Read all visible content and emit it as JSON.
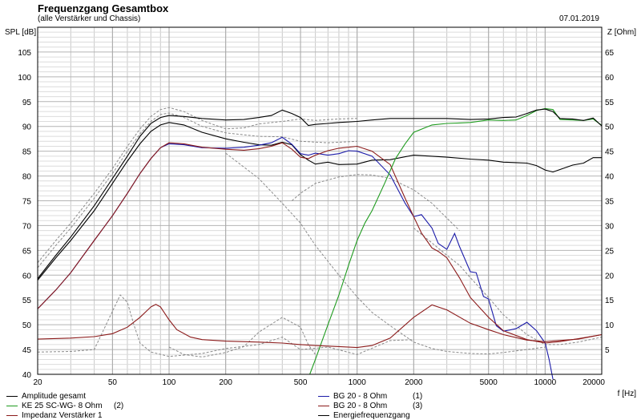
{
  "header": {
    "title": "Frequenzgang Gesamtbox",
    "subtitle": "(alle Verstärker und Chassis)",
    "date": "07.01.2019"
  },
  "chart_data": {
    "type": "line",
    "title": "Frequenzgang Gesamtbox",
    "subtitle": "(alle Verstärker und Chassis)",
    "xlabel": "f [Hz]",
    "ylabel": "SPL [dB]",
    "y2label": "Z [Ohm]",
    "xscale": "log",
    "xlim": [
      20,
      20000
    ],
    "ylim": [
      40,
      110
    ],
    "y2lim": [
      0,
      70
    ],
    "x_ticks": [
      20,
      50,
      100,
      200,
      500,
      1000,
      2000,
      5000,
      10000,
      20000
    ],
    "x_tick_labels": [
      "20",
      "50",
      "100",
      "200",
      "500",
      "1000",
      "2000",
      "5000",
      "10000",
      "20000"
    ],
    "y_ticks": [
      40,
      45,
      50,
      55,
      60,
      65,
      70,
      75,
      80,
      85,
      90,
      95,
      100,
      105
    ],
    "y_tick_labels": [
      "40",
      "45",
      "50",
      "55",
      "60",
      "65",
      "70",
      "75",
      "80",
      "85",
      "90",
      "95",
      "100",
      "105"
    ],
    "y2_ticks": [
      5,
      10,
      15,
      20,
      25,
      30,
      35,
      40,
      45,
      50,
      55,
      60,
      65
    ],
    "y2_tick_labels": [
      "5",
      "10",
      "15",
      "20",
      "25",
      "30",
      "35",
      "40",
      "45",
      "50",
      "55",
      "60",
      "65"
    ],
    "grid": true,
    "legend_position": "bottom",
    "series": [
      {
        "name": "Amplitude gesamt",
        "color": "#000000",
        "x": [
          20,
          25,
          30,
          40,
          50,
          60,
          70,
          80,
          90,
          100,
          120,
          150,
          200,
          250,
          300,
          350,
          400,
          450,
          500,
          550,
          600,
          700,
          800,
          1000,
          1200,
          1500,
          2000,
          3000,
          4000,
          5000,
          6000,
          7000,
          8000,
          9000,
          10000,
          11000,
          12000,
          14000,
          16000,
          18000,
          20000
        ],
        "y": [
          59,
          63.5,
          67,
          73,
          78.5,
          83,
          86.5,
          89,
          90.3,
          90.8,
          90.3,
          88.8,
          87.5,
          86.8,
          86.3,
          86.2,
          86.8,
          86.3,
          84.3,
          83.2,
          82.4,
          82.8,
          82.3,
          82.4,
          83.2,
          83.3,
          84.2,
          83.8,
          83.4,
          83.2,
          82.8,
          82.7,
          82.6,
          82.1,
          81.2,
          80.8,
          81.3,
          82.2,
          82.6,
          83.7,
          83.7
        ]
      },
      {
        "name": "BG 20 - 8 Ohm",
        "label_suffix": "(1)",
        "color": "#1a1aa8",
        "x": [
          20,
          25,
          30,
          40,
          50,
          60,
          70,
          80,
          90,
          100,
          120,
          150,
          200,
          250,
          300,
          350,
          400,
          450,
          500,
          550,
          600,
          700,
          800,
          900,
          1000,
          1200,
          1500,
          1800,
          2000,
          2200,
          2500,
          2700,
          3000,
          3300,
          3500,
          4000,
          4300,
          4700,
          5000,
          5500,
          6000,
          7000,
          8000,
          9000,
          10000,
          10500,
          11000
        ],
        "y": [
          53.2,
          57,
          60.5,
          67,
          72,
          76.5,
          80.5,
          83.5,
          85.7,
          86.5,
          86.3,
          85.7,
          85.6,
          85.8,
          86.2,
          86.7,
          87.8,
          86.4,
          84.5,
          84.2,
          84.6,
          84.2,
          84.5,
          85.1,
          85.0,
          84.0,
          80.2,
          74.5,
          71.8,
          72.2,
          69.5,
          66.4,
          65.2,
          68.4,
          65.8,
          60.7,
          60.5,
          55.7,
          55.2,
          49.8,
          48.7,
          49.2,
          50.5,
          48.8,
          46.3,
          43,
          39
        ]
      },
      {
        "name": "BG 20 - 8 Ohm",
        "label_suffix": "(3)",
        "color": "#8b1a1a",
        "x": [
          20,
          25,
          30,
          40,
          50,
          60,
          70,
          80,
          90,
          100,
          120,
          150,
          200,
          250,
          300,
          350,
          400,
          450,
          500,
          550,
          600,
          700,
          800,
          1000,
          1200,
          1500,
          1800,
          2000,
          2200,
          2500,
          2700,
          3000,
          3500,
          4000,
          5000,
          6000,
          8000,
          10000,
          12000,
          15000,
          20000
        ],
        "y": [
          53.2,
          57,
          60.5,
          67,
          72,
          76.5,
          80.5,
          83.5,
          85.7,
          86.7,
          86.5,
          85.8,
          85.4,
          85.2,
          85.5,
          86.0,
          86.7,
          85.4,
          83.8,
          83.5,
          84.2,
          85.1,
          85.6,
          86.0,
          85.0,
          82.3,
          75.5,
          71.8,
          68.5,
          65.5,
          64.8,
          63.5,
          59.5,
          55.5,
          51.5,
          48.8,
          47.0,
          46.3,
          46.6,
          47.2,
          48.0
        ]
      },
      {
        "name": "KE 25 SC-WG- 8 Ohm",
        "label_suffix": "(2)",
        "color": "#1f9b1f",
        "x": [
          560,
          600,
          700,
          800,
          900,
          1000,
          1100,
          1200,
          1400,
          1600,
          1800,
          2000,
          2500,
          3000,
          3500,
          4000,
          5000,
          6000,
          7000,
          8000,
          9000,
          10000,
          11000,
          12000,
          14000,
          16000,
          18000,
          20000
        ],
        "y": [
          40,
          43,
          50,
          56,
          62,
          67,
          70.5,
          73,
          78.5,
          83.5,
          86.5,
          88.8,
          90.3,
          90.6,
          90.7,
          90.8,
          91.3,
          91.2,
          91.3,
          92.2,
          93.2,
          93.6,
          93.4,
          91.4,
          91.3,
          91.2,
          91.5,
          90.2
        ]
      },
      {
        "name": "Energiefrequenzgang",
        "color": "#000000",
        "x": [
          20,
          25,
          30,
          40,
          50,
          60,
          70,
          80,
          90,
          100,
          120,
          150,
          200,
          250,
          300,
          350,
          400,
          450,
          500,
          550,
          600,
          700,
          800,
          1000,
          1200,
          1500,
          2000,
          3000,
          4000,
          5000,
          6000,
          7000,
          8000,
          9000,
          10000,
          11000,
          12000,
          14000,
          16000,
          18000,
          20000
        ],
        "y": [
          59.3,
          64,
          67.7,
          74,
          79.5,
          84,
          88,
          90.6,
          91.8,
          92.2,
          92.0,
          91.6,
          91.3,
          91.4,
          91.8,
          92.2,
          93.3,
          92.6,
          91.8,
          90.2,
          90.4,
          90.6,
          90.8,
          91.0,
          91.3,
          91.6,
          91.6,
          91.6,
          91.4,
          91.5,
          91.8,
          91.9,
          92.6,
          93.3,
          93.5,
          93.0,
          91.6,
          91.5,
          91.2,
          91.7,
          90.1
        ]
      },
      {
        "name": "Impedanz Verstärker 1",
        "color": "#8b1a1a",
        "axis": "right",
        "x": [
          20,
          30,
          40,
          50,
          60,
          70,
          80,
          85,
          90,
          100,
          110,
          130,
          150,
          200,
          300,
          400,
          500,
          600,
          800,
          1000,
          1200,
          1500,
          2000,
          2500,
          3000,
          4000,
          5000,
          6000,
          8000,
          10000,
          15000,
          20000
        ],
        "y": [
          7.1,
          7.3,
          7.6,
          8.2,
          9.5,
          11.5,
          13.6,
          14.1,
          13.6,
          11.0,
          9.0,
          7.5,
          7.0,
          6.7,
          6.5,
          6.3,
          6.0,
          5.8,
          5.6,
          5.4,
          5.8,
          7.3,
          11.5,
          14.0,
          13.0,
          10.3,
          9.0,
          8.0,
          6.9,
          6.6,
          7.1,
          8.0
        ]
      }
    ],
    "reference_curves_dashed": [
      {
        "color": "#8a8a8a",
        "x": [
          20,
          25,
          30,
          40,
          50,
          60,
          70,
          80,
          90,
          100,
          120,
          150,
          200,
          250,
          300,
          400,
          500,
          600,
          800,
          1000
        ],
        "y": [
          62.5,
          67,
          70.5,
          76.5,
          81.5,
          86,
          89.5,
          92,
          93.4,
          93.8,
          93.0,
          91.2,
          89.5,
          89.7,
          90.5,
          91.0,
          91.5,
          91.2,
          91.5,
          91.6
        ]
      },
      {
        "color": "#8a8a8a",
        "x": [
          20,
          25,
          30,
          40,
          50,
          60,
          70,
          80,
          90,
          100,
          120,
          150,
          200,
          300,
          400,
          500,
          700,
          1000
        ],
        "y": [
          61.5,
          66,
          69.5,
          75.5,
          80.5,
          85,
          88.5,
          91,
          92.4,
          92.7,
          91.8,
          90.0,
          88.7,
          88.0,
          87.9,
          87.0,
          86.7,
          87.0
        ]
      },
      {
        "color": "#8a8a8a",
        "x": [
          200,
          300,
          400,
          500,
          600,
          800,
          1000,
          1200,
          1500,
          2000,
          2500,
          3000,
          4000,
          5000,
          6000,
          8000,
          10000
        ],
        "y": [
          84.6,
          79.5,
          74.5,
          70.5,
          66,
          60,
          55.6,
          52.5,
          49.8,
          46.5,
          45.2,
          44.6,
          44.2,
          44.1,
          44.4,
          45.0,
          45.5
        ]
      },
      {
        "color": "#8a8a8a",
        "x": [
          450,
          500,
          600,
          800,
          1000,
          1200,
          1500,
          2000,
          2500,
          3000,
          3500
        ],
        "y": [
          75,
          76.5,
          78.5,
          79.8,
          80.3,
          80.2,
          79.5,
          77.2,
          74.5,
          71.5,
          69
        ]
      },
      {
        "color": "#8a8a8a",
        "x": [
          2000,
          2500,
          3000,
          3500,
          4000,
          5000,
          6000,
          8000,
          10000,
          12000,
          15000,
          20000
        ],
        "y": [
          69.5,
          66.5,
          64.0,
          62.0,
          59.5,
          55.5,
          52.0,
          48.0,
          46.0,
          46.0,
          46.5,
          47.5
        ]
      },
      {
        "color": "#8a8a8a",
        "x": [
          20,
          30,
          40,
          48,
          55,
          60,
          65,
          70,
          80,
          100,
          150,
          200,
          300,
          400,
          500,
          700,
          1000,
          1500,
          2000
        ],
        "y": [
          44.5,
          44.6,
          45.0,
          51.3,
          56.0,
          54.5,
          50.0,
          46.3,
          44.5,
          43.6,
          44.2,
          45.2,
          46.0,
          47.5,
          45.0,
          45.5,
          44.0,
          46.8,
          47.0
        ]
      },
      {
        "color": "#8a8a8a",
        "x": [
          100,
          120,
          150,
          200,
          250,
          300,
          400,
          500,
          550,
          600
        ],
        "y": [
          45.5,
          44.0,
          43.5,
          44.4,
          45.6,
          48.5,
          51.5,
          49.5,
          46.0,
          44.0
        ]
      }
    ]
  },
  "legend": {
    "items": [
      {
        "label": "Amplitude gesamt",
        "num": "",
        "color": "#000000"
      },
      {
        "label": "BG 20 - 8 Ohm",
        "num": "(1)",
        "color": "#1a1aa8"
      },
      {
        "label": "KE 25 SC-WG- 8 Ohm",
        "num": "(2)",
        "color": "#1f9b1f"
      },
      {
        "label": "BG 20 - 8 Ohm",
        "num": "(3)",
        "color": "#8b1a1a"
      },
      {
        "label": "Impedanz Verstärker 1",
        "num": "",
        "color": "#8b1a1a"
      },
      {
        "label": "Energiefrequenzgang",
        "num": "",
        "color": "#000000"
      }
    ]
  }
}
